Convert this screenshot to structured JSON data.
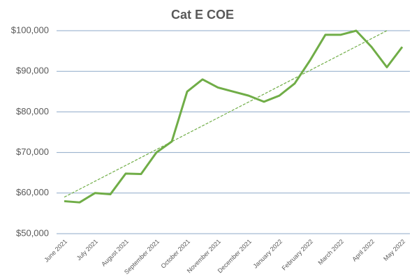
{
  "chart_data": {
    "type": "line",
    "title": "Cat E COE",
    "categories": [
      "June 2021",
      null,
      "July 2021",
      null,
      "August 2021",
      null,
      "September 2021",
      null,
      "October 2021",
      null,
      "November 2021",
      null,
      "December 2021",
      null,
      "January 2022",
      null,
      "February 2022",
      null,
      "March 2022",
      null,
      "April 2022",
      null,
      "May 2022"
    ],
    "series": [
      {
        "color": "#70ad47",
        "values": [
          58000,
          57700,
          60000,
          59700,
          64800,
          64700,
          70000,
          72700,
          85000,
          88000,
          86000,
          85000,
          84000,
          82500,
          84000,
          87000,
          92700,
          99000,
          99000,
          100000,
          96000,
          91000,
          96000
        ]
      }
    ],
    "trendline": {
      "x": [
        0,
        21
      ],
      "values": [
        59000,
        100000
      ],
      "color": "#70ad47",
      "dashed": true
    },
    "ylim": [
      50000,
      100000
    ],
    "yticks": [
      {
        "value": 50000,
        "label": "$50,000"
      },
      {
        "value": 60000,
        "label": "$60,000"
      },
      {
        "value": 70000,
        "label": "$70,000"
      },
      {
        "value": 80000,
        "label": "$80,000"
      },
      {
        "value": 90000,
        "label": "$90,000"
      },
      {
        "value": 100000,
        "label": "$100,000"
      }
    ],
    "grid": true
  }
}
